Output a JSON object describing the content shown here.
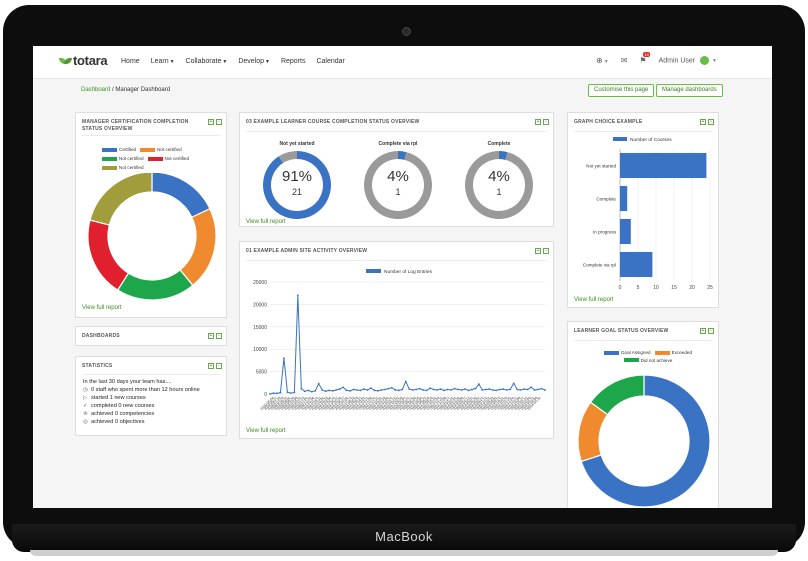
{
  "device": {
    "brand": "MacBook"
  },
  "navbar": {
    "logo_text": "totara",
    "items": [
      {
        "label": "Home",
        "has_caret": false
      },
      {
        "label": "Learn",
        "has_caret": true
      },
      {
        "label": "Collaborate",
        "has_caret": true
      },
      {
        "label": "Develop",
        "has_caret": true
      },
      {
        "label": "Reports",
        "has_caret": false
      },
      {
        "label": "Calendar",
        "has_caret": false
      }
    ],
    "notification_count": "10",
    "user_name": "Admin User"
  },
  "breadcrumb": {
    "home": "Dashboard",
    "separator": "/",
    "current": "Manager Dashboard"
  },
  "buttons": {
    "customise": "Customise this page",
    "manage": "Manage dashboards"
  },
  "block_controls": {
    "add": "+",
    "collapse": "-"
  },
  "view_full_report": "View full report",
  "colors": {
    "blue": "#3b73c4",
    "orange": "#ef8a2e",
    "green": "#1ea64b",
    "red": "#e0202f",
    "olive": "#a19c3c",
    "grey": "#9a9a9a",
    "accent": "#69bd45",
    "link": "#3d8e1e"
  },
  "cert_block": {
    "title": "Manager certification completion status overview",
    "legend": [
      {
        "label": "Certified",
        "color": "#3b73c4"
      },
      {
        "label": "Not certified",
        "color": "#ef8a2e"
      },
      {
        "label": "Not certified",
        "color": "#1ea64b"
      },
      {
        "label": "Not certified",
        "color": "#e0202f"
      },
      {
        "label": "Not certified",
        "color": "#a19c3c"
      }
    ],
    "chart_data": {
      "type": "pie",
      "labels": [
        "Certified",
        "Not certified",
        "Not certified",
        "Not certified",
        "Not certified"
      ],
      "values": [
        18,
        21,
        20,
        20,
        21
      ],
      "colors": [
        "#3b73c4",
        "#ef8a2e",
        "#1ea64b",
        "#e0202f",
        "#a19c3c"
      ],
      "donut": true
    }
  },
  "dashboards_block": {
    "title": "Dashboards"
  },
  "stats_block": {
    "title": "Statistics",
    "intro": "In the last 30 days your team has....",
    "lines": [
      {
        "icon": "clock-icon",
        "glyph": "◷",
        "text": "0 staff who spent more than 12 hours online"
      },
      {
        "icon": "play-icon",
        "glyph": "▷",
        "text": "started 1 new courses"
      },
      {
        "icon": "check-circle-icon",
        "glyph": "✓",
        "text": "completed 0 new courses"
      },
      {
        "icon": "trophy-icon",
        "glyph": "♔",
        "text": "achieved 0 competencies"
      },
      {
        "icon": "target-icon",
        "glyph": "◎",
        "text": "achieved 0 objectives"
      }
    ]
  },
  "learner_block": {
    "title": "03 Example learner course completion status overview",
    "donuts": [
      {
        "label": "Not yet started",
        "percent": "91%",
        "count": "21",
        "value": 91
      },
      {
        "label": "Complete via rpl",
        "percent": "4%",
        "count": "1",
        "value": 4
      },
      {
        "label": "Complete",
        "percent": "4%",
        "count": "1",
        "value": 4
      }
    ]
  },
  "activity_block": {
    "title": "01 Example admin site activity overview",
    "legend": "Number of Log Entries",
    "chart_data": {
      "type": "line",
      "series": [
        {
          "name": "Number of Log Entries",
          "values": [
            0,
            200,
            150,
            300,
            8000,
            400,
            200,
            350,
            22000,
            1200,
            600,
            800,
            500,
            700,
            2300,
            900,
            600,
            800,
            700,
            900,
            1100,
            1500,
            800,
            700,
            1000,
            900,
            800,
            1100,
            900,
            1300,
            800,
            700,
            900,
            1000,
            1200,
            1400,
            900,
            800,
            1000,
            2800,
            1100,
            900,
            1000,
            1200,
            900,
            800,
            1300,
            1000,
            900,
            1100,
            800,
            1000,
            900,
            1200,
            1000,
            900,
            1100,
            800,
            1000,
            1200,
            2200,
            900,
            1000,
            1100,
            900,
            800,
            1000,
            1100,
            900,
            1000,
            2400,
            1000,
            900,
            1100,
            1000,
            1500,
            900,
            1000,
            1200,
            900
          ]
        }
      ],
      "ylim": [
        0,
        25000
      ],
      "yticks": [
        "0",
        "5000",
        "10000",
        "15000",
        "20000",
        "25000"
      ],
      "xticks": [
        "2020-06-04",
        "2020-06-22",
        "2020-07-10",
        "2020-07-28",
        "2020-08-15",
        "2020-09-02",
        "2020-09-20",
        "2020-10-08",
        "2020-10-26",
        "2020-11-13",
        "2020-12-01",
        "2020-12-19",
        "2021-01-06",
        "2021-01-24",
        "2021-02-11",
        "2021-03-01",
        "2021-03-19",
        "2021-04-06",
        "2021-04-24",
        "2021-05-12",
        "2021-05-30",
        "2021-06-17",
        "2021-07-05",
        "2021-07-23",
        "2021-08-10",
        "2021-08-28",
        "2021-09-15",
        "2021-10-03",
        "2021-10-21",
        "2021-11-08",
        "2021-11-26",
        "2021-12-14",
        "2022-01-01",
        "2022-01-19",
        "2022-02-06",
        "2022-02-24",
        "2022-03-14",
        "2022-04-01",
        "2022-04-19",
        "2022-05-07",
        "2022-05-25",
        "2022-06-12",
        "2022-06-30",
        "2022-07-18",
        "2022-08-05",
        "2022-08-23",
        "2022-09-10",
        "2022-09-28",
        "2022-10-16",
        "2022-11-03",
        "2022-11-21",
        "2022-12-09",
        "2022-12-27",
        "2023-01-14",
        "2023-02-01",
        "2023-02-19",
        "2023-03-09",
        "2023-03-27",
        "2023-04-14",
        "2023-05-02",
        "2023-05-20",
        "2023-06-07",
        "2023-06-25",
        "2023-07-13",
        "2023-07-31",
        "2023-08-18",
        "2023-09-05",
        "2023-09-23",
        "2023-10-11",
        "2023-10-29",
        "2023-11-16",
        "2023-12-04",
        "2023-12-22",
        "2024-01-09",
        "2024-01-27",
        "2024-02-14",
        "2024-03-03",
        "2024-03-21",
        "2024-04-08",
        "2024-04-26"
      ]
    }
  },
  "graph_block": {
    "title": "Graph choice example",
    "legend": "Number of Courses",
    "chart_data": {
      "type": "bar",
      "orientation": "horizontal",
      "categories": [
        "Not yet started",
        "Complete",
        "In progress",
        "Complete via rpl"
      ],
      "values": [
        24,
        2,
        3,
        9
      ],
      "xlim": [
        0,
        25
      ],
      "xticks": [
        "0",
        "5",
        "10",
        "15",
        "20",
        "25"
      ]
    }
  },
  "goal_block": {
    "title": "Learner goal status overview",
    "legend": [
      {
        "label": "Goal Assigned",
        "color": "#3b73c4"
      },
      {
        "label": "Exceeded",
        "color": "#ef8a2e"
      },
      {
        "label": "Did not achieve",
        "color": "#1ea64b"
      }
    ],
    "chart_data": {
      "type": "pie",
      "labels": [
        "Goal Assigned",
        "Exceeded",
        "Did not achieve"
      ],
      "values": [
        70,
        15,
        15
      ],
      "colors": [
        "#3b73c4",
        "#ef8a2e",
        "#1ea64b"
      ],
      "donut": true
    }
  }
}
